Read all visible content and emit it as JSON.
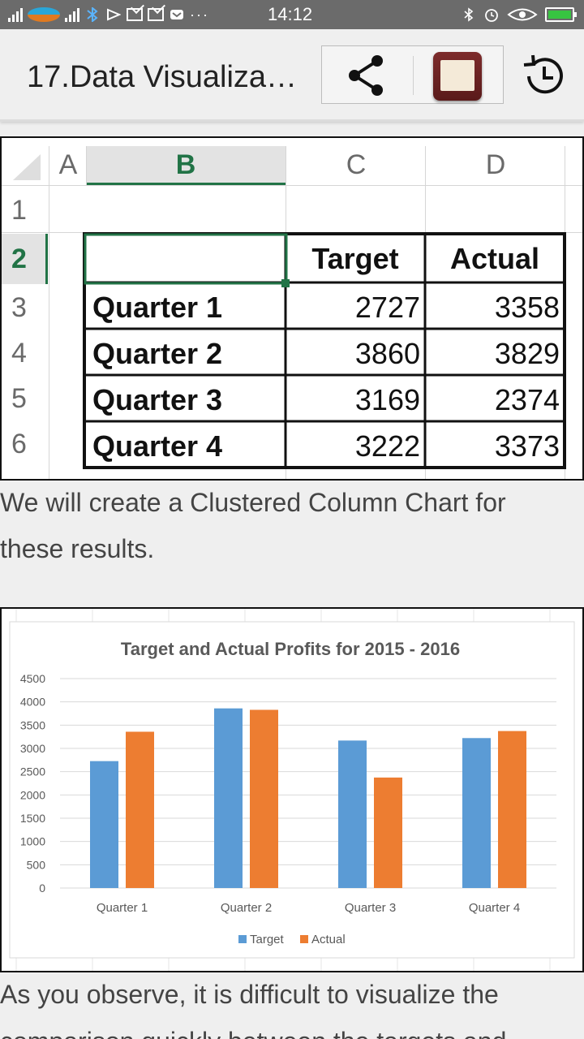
{
  "status_bar": {
    "time": "14:12",
    "icons": [
      "signal-icon",
      "carrier-logo-icon",
      "signal-icon",
      "bluetooth-icon",
      "check-icon",
      "gmail-icon",
      "gmail-icon",
      "mail-icon",
      "more-dots-icon",
      "bluetooth-icon",
      "alarm-icon",
      "eye-icon",
      "battery-charging-icon"
    ],
    "overflow_label": "···"
  },
  "app_bar": {
    "title": "17.Data Visualiza…",
    "actions": [
      "share-icon",
      "notebook-app-icon",
      "history-icon"
    ]
  },
  "spreadsheet": {
    "column_headers": [
      "A",
      "B",
      "C",
      "D"
    ],
    "row_numbers": [
      "1",
      "2",
      "3",
      "4",
      "5",
      "6"
    ],
    "header_row": [
      "",
      "Target",
      "Actual"
    ],
    "rows": [
      {
        "label": "Quarter 1",
        "target": "2727",
        "actual": "3358"
      },
      {
        "label": "Quarter 2",
        "target": "3860",
        "actual": "3829"
      },
      {
        "label": "Quarter 3",
        "target": "3169",
        "actual": "2374"
      },
      {
        "label": "Quarter 4",
        "target": "3222",
        "actual": "3373"
      }
    ],
    "selected_column_color": "#217346"
  },
  "text": {
    "para1_line1": "We will create a Clustered Column Chart for",
    "para1_line2": "these results.",
    "para2_line1": "As you observe, it is difficult to visualize the",
    "para2_line2": "comparison quickly between the targets and"
  },
  "chart_data": {
    "type": "bar",
    "title": "Target and Actual Profits for 2015 - 2016",
    "categories": [
      "Quarter 1",
      "Quarter 2",
      "Quarter 3",
      "Quarter 4"
    ],
    "series": [
      {
        "name": "Target",
        "values": [
          2727,
          3860,
          3169,
          3222
        ],
        "color": "#5b9bd5"
      },
      {
        "name": "Actual",
        "values": [
          3358,
          3829,
          2374,
          3373
        ],
        "color": "#ed7d31"
      }
    ],
    "ylim": [
      0,
      4500
    ],
    "yticks": [
      "0",
      "500",
      "1000",
      "1500",
      "2000",
      "2500",
      "3000",
      "3500",
      "4000",
      "4500"
    ],
    "grid": true,
    "legend": "bottom"
  }
}
